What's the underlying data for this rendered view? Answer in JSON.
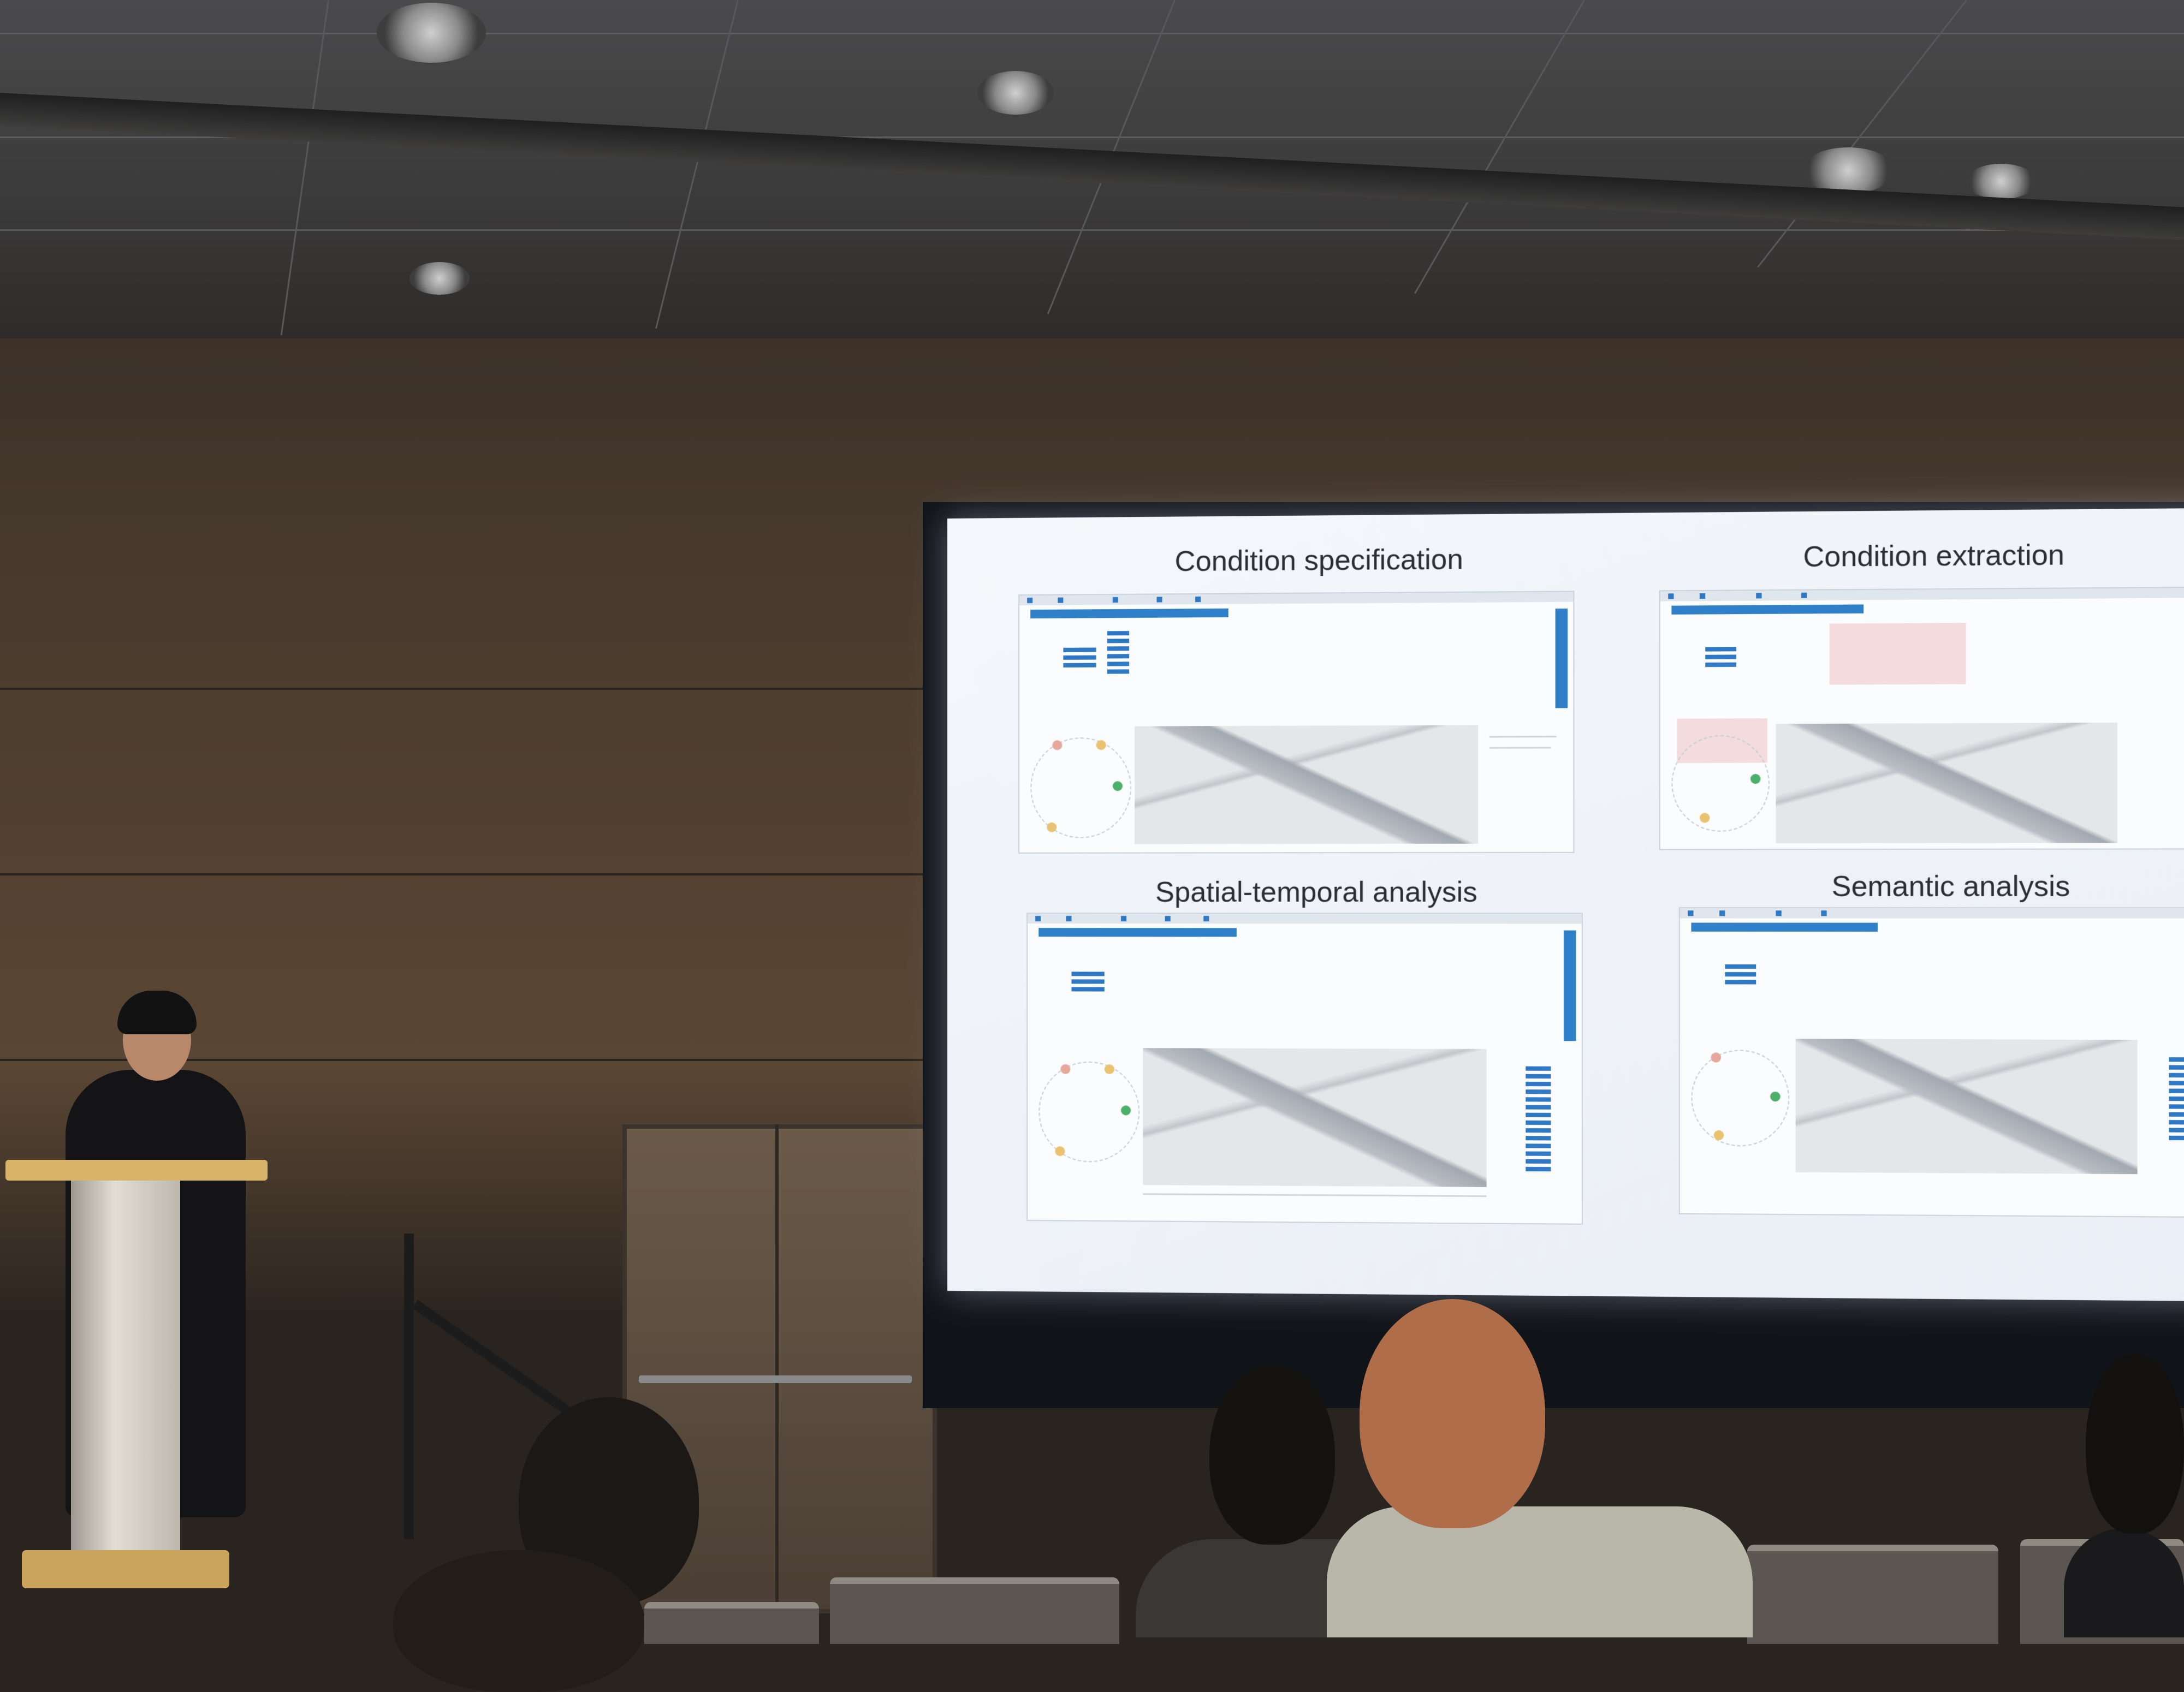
{
  "slide": {
    "titles": {
      "top_left": "Condition specification",
      "top_right": "Condition extraction",
      "bottom_left": "Spatial-temporal analysis",
      "bottom_right": "Semantic analysis"
    }
  },
  "colors": {
    "accent_blue": "#2f7fc9",
    "screen_bg": "#f4f7fb",
    "podium_wood": "#d8b46a"
  }
}
